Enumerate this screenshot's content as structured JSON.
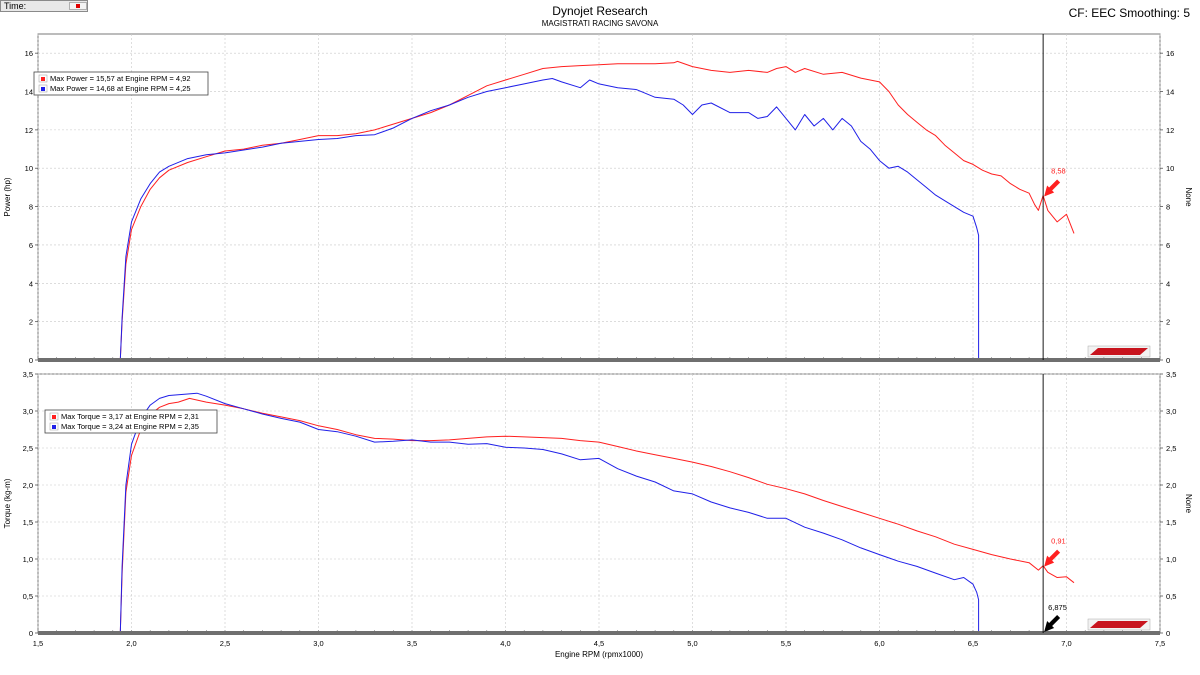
{
  "header": {
    "time_label": "Time:",
    "title": "Dynojet Research",
    "subtitle": "MAGISTRATI RACING SAVONA",
    "cf_text": "CF: EEC Smoothing: 5"
  },
  "colors": {
    "run1": "#ff2020",
    "run2": "#2020e8",
    "grid": "#c8c8c8",
    "cursor": "#000000"
  },
  "chart_data": [
    {
      "type": "line",
      "name": "power",
      "ylabel": "Power (hp)",
      "ylabel_right": "None",
      "ylim": [
        0,
        17
      ],
      "yticks": [
        "0",
        "2",
        "4",
        "6",
        "8",
        "10",
        "12",
        "14",
        "16"
      ],
      "legend": [
        "Max Power = 15,57 at Engine RPM = 4,92",
        "Max Power = 14,68 at Engine RPM = 4,25"
      ],
      "cursor_value_label": "8,58",
      "series": [
        {
          "color_key": "run1",
          "x": [
            1.94,
            1.95,
            1.97,
            2.0,
            2.05,
            2.1,
            2.15,
            2.2,
            2.3,
            2.4,
            2.5,
            2.6,
            2.7,
            2.8,
            2.9,
            3.0,
            3.1,
            3.2,
            3.3,
            3.4,
            3.5,
            3.6,
            3.7,
            3.8,
            3.9,
            4.0,
            4.1,
            4.2,
            4.3,
            4.4,
            4.5,
            4.6,
            4.7,
            4.8,
            4.9,
            4.92,
            5.0,
            5.1,
            5.2,
            5.3,
            5.4,
            5.45,
            5.5,
            5.55,
            5.6,
            5.7,
            5.8,
            5.9,
            6.0,
            6.05,
            6.1,
            6.15,
            6.2,
            6.25,
            6.3,
            6.35,
            6.4,
            6.45,
            6.5,
            6.55,
            6.6,
            6.65,
            6.7,
            6.75,
            6.8,
            6.83,
            6.85,
            6.875,
            6.9,
            6.95,
            7.0,
            7.04
          ],
          "y": [
            0,
            2.0,
            5.0,
            6.8,
            8.0,
            8.9,
            9.5,
            9.9,
            10.3,
            10.6,
            10.9,
            11.0,
            11.2,
            11.3,
            11.5,
            11.7,
            11.7,
            11.8,
            12.0,
            12.3,
            12.6,
            12.9,
            13.3,
            13.8,
            14.3,
            14.6,
            14.9,
            15.2,
            15.3,
            15.35,
            15.4,
            15.45,
            15.45,
            15.45,
            15.5,
            15.57,
            15.3,
            15.1,
            15.0,
            15.1,
            15.0,
            15.2,
            15.3,
            15.0,
            15.2,
            14.9,
            15.0,
            14.7,
            14.5,
            14.0,
            13.3,
            12.8,
            12.4,
            12.0,
            11.7,
            11.2,
            10.8,
            10.4,
            10.2,
            9.9,
            9.7,
            9.6,
            9.2,
            8.9,
            8.7,
            8.1,
            7.8,
            8.58,
            7.8,
            7.2,
            7.6,
            6.6
          ]
        },
        {
          "color_key": "run2",
          "x": [
            1.94,
            1.95,
            1.97,
            2.0,
            2.05,
            2.1,
            2.15,
            2.2,
            2.3,
            2.4,
            2.5,
            2.6,
            2.7,
            2.8,
            2.9,
            3.0,
            3.1,
            3.2,
            3.3,
            3.4,
            3.5,
            3.6,
            3.7,
            3.8,
            3.9,
            4.0,
            4.1,
            4.2,
            4.25,
            4.3,
            4.4,
            4.45,
            4.5,
            4.6,
            4.7,
            4.8,
            4.9,
            4.95,
            5.0,
            5.05,
            5.1,
            5.2,
            5.3,
            5.35,
            5.4,
            5.45,
            5.5,
            5.55,
            5.6,
            5.65,
            5.7,
            5.75,
            5.8,
            5.85,
            5.9,
            5.95,
            6.0,
            6.05,
            6.1,
            6.15,
            6.2,
            6.25,
            6.3,
            6.35,
            6.4,
            6.45,
            6.5,
            6.52,
            6.53,
            6.53
          ],
          "y": [
            0,
            2.2,
            5.4,
            7.2,
            8.4,
            9.2,
            9.8,
            10.1,
            10.5,
            10.7,
            10.8,
            10.95,
            11.1,
            11.3,
            11.4,
            11.5,
            11.55,
            11.7,
            11.75,
            12.1,
            12.6,
            13.0,
            13.3,
            13.7,
            14.0,
            14.2,
            14.4,
            14.6,
            14.68,
            14.5,
            14.2,
            14.6,
            14.4,
            14.2,
            14.1,
            13.7,
            13.6,
            13.3,
            12.8,
            13.3,
            13.4,
            12.9,
            12.9,
            12.6,
            12.7,
            13.2,
            12.6,
            12.0,
            12.8,
            12.2,
            12.6,
            12.0,
            12.6,
            12.2,
            11.4,
            11.0,
            10.4,
            10.0,
            10.1,
            9.8,
            9.4,
            9.0,
            8.6,
            8.3,
            8.0,
            7.7,
            7.5,
            6.9,
            6.5,
            0
          ]
        }
      ]
    },
    {
      "type": "line",
      "name": "torque",
      "ylabel": "Torque (kg-m)",
      "ylabel_right": "None",
      "xlabel": "Engine RPM (rpmx1000)",
      "xlim": [
        1.5,
        7.5
      ],
      "xticks": [
        "1,5",
        "2,0",
        "2,5",
        "3,0",
        "3,5",
        "4,0",
        "4,5",
        "5,0",
        "5,5",
        "6,0",
        "6,5",
        "7,0",
        "7,5"
      ],
      "ylim": [
        0,
        3.5
      ],
      "yticks": [
        "0",
        "0,5",
        "1,0",
        "1,5",
        "2,0",
        "2,5",
        "3,0",
        "3,5"
      ],
      "legend": [
        "Max Torque = 3,17 at Engine RPM = 2,31",
        "Max Torque = 3,24 at Engine RPM = 2,35"
      ],
      "cursor_value_label": "0,91",
      "cursor_rpm_label": "6,875",
      "cursor_rpm": 6.875,
      "series": [
        {
          "color_key": "run1",
          "x": [
            1.94,
            1.95,
            1.97,
            2.0,
            2.05,
            2.1,
            2.15,
            2.2,
            2.25,
            2.31,
            2.4,
            2.5,
            2.6,
            2.7,
            2.8,
            2.9,
            3.0,
            3.1,
            3.2,
            3.3,
            3.4,
            3.5,
            3.6,
            3.7,
            3.8,
            3.9,
            4.0,
            4.1,
            4.2,
            4.3,
            4.4,
            4.5,
            4.6,
            4.7,
            4.8,
            4.9,
            5.0,
            5.1,
            5.2,
            5.3,
            5.4,
            5.5,
            5.6,
            5.7,
            5.8,
            5.9,
            6.0,
            6.1,
            6.2,
            6.3,
            6.4,
            6.5,
            6.6,
            6.7,
            6.8,
            6.85,
            6.875,
            6.9,
            6.95,
            7.0,
            7.04
          ],
          "y": [
            0,
            0.8,
            1.9,
            2.4,
            2.75,
            2.95,
            3.05,
            3.1,
            3.12,
            3.17,
            3.12,
            3.08,
            3.03,
            2.97,
            2.92,
            2.87,
            2.8,
            2.75,
            2.68,
            2.63,
            2.62,
            2.6,
            2.6,
            2.61,
            2.63,
            2.65,
            2.66,
            2.65,
            2.64,
            2.63,
            2.6,
            2.58,
            2.52,
            2.46,
            2.41,
            2.36,
            2.31,
            2.25,
            2.18,
            2.1,
            2.01,
            1.95,
            1.88,
            1.79,
            1.71,
            1.63,
            1.55,
            1.47,
            1.38,
            1.3,
            1.2,
            1.13,
            1.06,
            1.0,
            0.95,
            0.85,
            0.91,
            0.82,
            0.75,
            0.76,
            0.68
          ]
        },
        {
          "color_key": "run2",
          "x": [
            1.94,
            1.95,
            1.97,
            2.0,
            2.05,
            2.1,
            2.15,
            2.2,
            2.25,
            2.35,
            2.4,
            2.5,
            2.6,
            2.7,
            2.8,
            2.9,
            3.0,
            3.1,
            3.2,
            3.3,
            3.4,
            3.5,
            3.6,
            3.7,
            3.8,
            3.9,
            4.0,
            4.1,
            4.2,
            4.3,
            4.4,
            4.5,
            4.6,
            4.7,
            4.8,
            4.9,
            5.0,
            5.1,
            5.2,
            5.3,
            5.4,
            5.5,
            5.6,
            5.7,
            5.8,
            5.9,
            6.0,
            6.1,
            6.2,
            6.3,
            6.4,
            6.45,
            6.5,
            6.52,
            6.53,
            6.53
          ],
          "y": [
            0,
            0.9,
            2.0,
            2.55,
            2.9,
            3.08,
            3.17,
            3.21,
            3.22,
            3.24,
            3.2,
            3.1,
            3.03,
            2.96,
            2.9,
            2.85,
            2.75,
            2.72,
            2.66,
            2.58,
            2.59,
            2.61,
            2.58,
            2.58,
            2.55,
            2.56,
            2.51,
            2.5,
            2.48,
            2.42,
            2.34,
            2.36,
            2.22,
            2.12,
            2.04,
            1.92,
            1.88,
            1.77,
            1.69,
            1.63,
            1.55,
            1.55,
            1.43,
            1.35,
            1.26,
            1.15,
            1.06,
            0.97,
            0.9,
            0.81,
            0.72,
            0.75,
            0.66,
            0.55,
            0.45,
            0
          ]
        }
      ]
    }
  ]
}
